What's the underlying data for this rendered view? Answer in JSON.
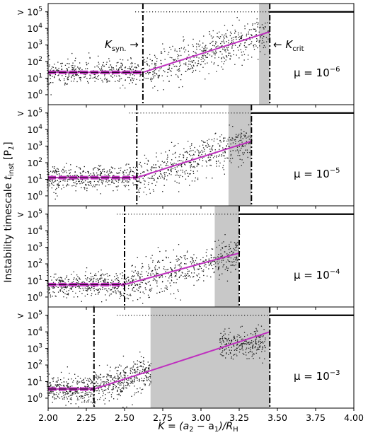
{
  "figure": {
    "ylabel_main": "Instability timescale ",
    "ylabel_var": "t",
    "ylabel_sub": "inst",
    "ylabel_unit": " [P",
    "ylabel_unit_sub": "1",
    "ylabel_close": "]",
    "xlabel_lhs": "K = (a",
    "xlabel_mid": " − a",
    "xlabel_rhs": ")/R",
    "xlabel_sub2": "2",
    "xlabel_sub1": "1",
    "xlabel_subH": "H",
    "ksyn_label": "K",
    "ksyn_sub": "syn.",
    "ksyn_arrow": "→",
    "kcrit_label": "K",
    "kcrit_sub": "crit",
    "kcrit_arrow": "←",
    "colors": {
      "scatter": "#1a1a1a",
      "fit": "#bf2fbf",
      "band": "#c8c8c8",
      "vline": "#000000",
      "cap": "#000000"
    }
  },
  "chart_data": [
    {
      "type": "scatter",
      "mu_base": "μ = 10",
      "mu_exp": "−6",
      "xlim": [
        2.0,
        4.0
      ],
      "ylim_log10": [
        -0.6,
        5.5
      ],
      "k_syn": 2.62,
      "k_crit": 3.45,
      "band": [
        3.38,
        3.45
      ],
      "cap_log10": 5.0,
      "plateau_log10": 1.35,
      "fit": [
        [
          2.0,
          1.35
        ],
        [
          2.62,
          1.35
        ],
        [
          3.45,
          3.8
        ]
      ],
      "y_tick_labels": [
        "10",
        "10",
        "10",
        "10",
        "10",
        "> 10"
      ],
      "y_tick_exps": [
        "0",
        "1",
        "2",
        "3",
        "4",
        "5"
      ]
    },
    {
      "type": "scatter",
      "mu_base": "μ = 10",
      "mu_exp": "−5",
      "xlim": [
        2.0,
        4.0
      ],
      "ylim_log10": [
        -0.6,
        5.5
      ],
      "k_syn": 2.58,
      "k_crit": 3.33,
      "band": [
        3.18,
        3.33
      ],
      "cap_log10": 5.0,
      "plateau_log10": 1.1,
      "fit": [
        [
          2.0,
          1.1
        ],
        [
          2.58,
          1.1
        ],
        [
          3.33,
          3.3
        ]
      ],
      "y_tick_labels": [
        "10",
        "10",
        "10",
        "10",
        "10",
        "> 10"
      ],
      "y_tick_exps": [
        "0",
        "1",
        "2",
        "3",
        "4",
        "5"
      ]
    },
    {
      "type": "scatter",
      "mu_base": "μ = 10",
      "mu_exp": "−4",
      "xlim": [
        2.0,
        4.0
      ],
      "ylim_log10": [
        -0.6,
        5.5
      ],
      "k_syn": 2.5,
      "k_crit": 3.25,
      "band": [
        3.09,
        3.25
      ],
      "cap_log10": 5.0,
      "plateau_log10": 0.75,
      "fit": [
        [
          2.0,
          0.75
        ],
        [
          2.5,
          0.75
        ],
        [
          3.25,
          2.65
        ]
      ],
      "y_tick_labels": [
        "10",
        "10",
        "10",
        "10",
        "10",
        "> 10"
      ],
      "y_tick_exps": [
        "0",
        "1",
        "2",
        "3",
        "4",
        "5"
      ]
    },
    {
      "type": "scatter",
      "mu_base": "μ = 10",
      "mu_exp": "−3",
      "xlim": [
        2.0,
        4.0
      ],
      "ylim_log10": [
        -0.6,
        5.5
      ],
      "k_syn": 2.3,
      "k_crit": 3.45,
      "band": [
        2.67,
        3.45
      ],
      "cap_log10": 5.0,
      "plateau_log10": 0.55,
      "fit": [
        [
          2.0,
          0.55
        ],
        [
          2.3,
          0.55
        ],
        [
          3.45,
          4.0
        ]
      ],
      "y_tick_labels": [
        "10",
        "10",
        "10",
        "10",
        "10",
        "> 10"
      ],
      "y_tick_exps": [
        "0",
        "1",
        "2",
        "3",
        "4",
        "5"
      ]
    }
  ],
  "x_ticks": [
    "2.00",
    "2.25",
    "2.50",
    "2.75",
    "3.00",
    "3.25",
    "3.50",
    "3.75",
    "4.00"
  ],
  "x_tick_values": [
    2.0,
    2.25,
    2.5,
    2.75,
    3.0,
    3.25,
    3.5,
    3.75,
    4.0
  ]
}
